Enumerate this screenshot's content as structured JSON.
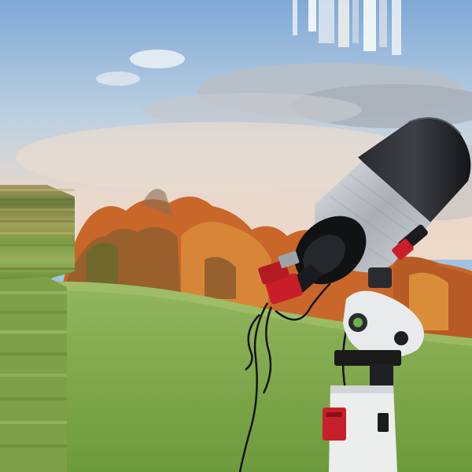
{
  "scene": {
    "description_tag": "telescope-on-field",
    "colors": {
      "sky_top": "#8fb5dc",
      "sky_mid": "#c7d6e4",
      "horizon_haze": "#e6d7cc",
      "cloud": "#b7bcc4",
      "foliage_orange": "#c9662a",
      "foliage_amber": "#d88f34",
      "foliage_dark": "#6b4a2a",
      "grass_light": "#8fb35a",
      "grass_dark": "#5f8a34",
      "tube_black": "#1d1f22",
      "foil_silver": "#b9bec4",
      "camera_red": "#c81e2a",
      "mount_white": "#e9eaec",
      "mount_black": "#1a1a1a"
    },
    "icons": [
      "telescope-icon"
    ]
  }
}
